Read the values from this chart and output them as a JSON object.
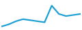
{
  "x": [
    0,
    1,
    2,
    3,
    4,
    5,
    6,
    7,
    8,
    9,
    10,
    11
  ],
  "y": [
    2,
    4,
    7,
    9,
    8,
    7,
    6,
    22,
    14,
    12,
    13,
    14
  ],
  "line_color": "#1a9fd4",
  "line_width": 1.6,
  "background_color": "#ffffff",
  "ylim_min": 0,
  "ylim_max": 26
}
